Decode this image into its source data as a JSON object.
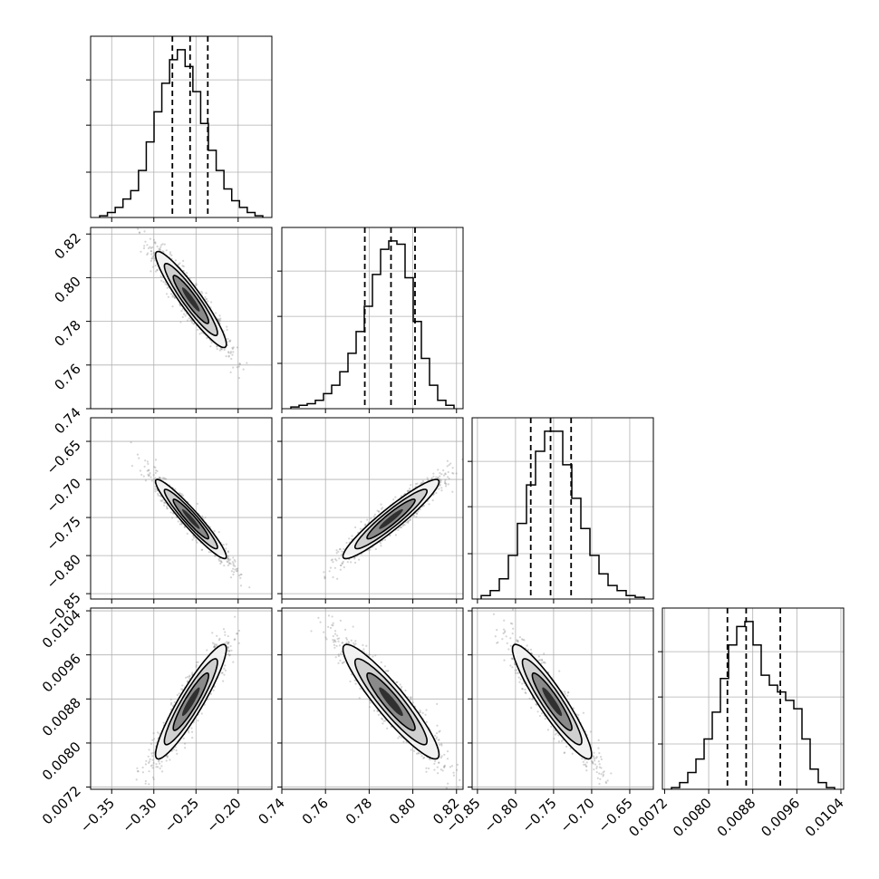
{
  "chart_data": {
    "type": "corner",
    "parameters": [
      {
        "range": [
          -0.375,
          -0.16
        ],
        "ticks": [
          -0.35,
          -0.3,
          -0.25,
          -0.2
        ],
        "tick_labels": [
          "−0.35",
          "−0.30",
          "−0.25",
          "−0.20"
        ],
        "mean": -0.256,
        "sd": 0.021,
        "quantiles": [
          -0.278,
          -0.257,
          -0.236
        ]
      },
      {
        "range": [
          0.74,
          0.823
        ],
        "ticks": [
          0.74,
          0.76,
          0.78,
          0.8,
          0.82
        ],
        "tick_labels": [
          "0.74",
          "0.76",
          "0.78",
          "0.80",
          "0.82"
        ],
        "mean": 0.79,
        "sd": 0.011,
        "quantiles": [
          0.778,
          0.79,
          0.801
        ]
      },
      {
        "range": [
          -0.857,
          -0.619
        ],
        "ticks": [
          -0.85,
          -0.8,
          -0.75,
          -0.7,
          -0.65
        ],
        "tick_labels": [
          "−0.85",
          "−0.80",
          "−0.75",
          "−0.70",
          "−0.65"
        ],
        "mean": -0.752,
        "sd": 0.026,
        "quantiles": [
          -0.78,
          -0.754,
          -0.727
        ]
      },
      {
        "range": [
          0.00716,
          0.01045
        ],
        "ticks": [
          0.0072,
          0.008,
          0.0088,
          0.0096,
          0.0104
        ],
        "tick_labels": [
          "0.0072",
          "0.0080",
          "0.0088",
          "0.0096",
          "0.0104"
        ],
        "mean": 0.00875,
        "sd": 0.00052,
        "quantiles": [
          0.00834,
          0.00868,
          0.0093
        ]
      }
    ],
    "correlations": [
      [
        1,
        -0.93,
        -0.95,
        0.92
      ],
      [
        -0.93,
        1,
        0.94,
        -0.92
      ],
      [
        -0.95,
        0.94,
        1,
        -0.92
      ],
      [
        0.92,
        -0.92,
        -0.92,
        1
      ]
    ],
    "histograms": [
      [
        0.01,
        0.03,
        0.06,
        0.11,
        0.16,
        0.28,
        0.45,
        0.63,
        0.8,
        0.94,
        1.0,
        0.9,
        0.75,
        0.56,
        0.4,
        0.28,
        0.17,
        0.1,
        0.06,
        0.03,
        0.01
      ],
      [
        0.01,
        0.02,
        0.03,
        0.05,
        0.09,
        0.14,
        0.22,
        0.33,
        0.46,
        0.61,
        0.8,
        0.95,
        1.0,
        0.98,
        0.78,
        0.52,
        0.3,
        0.14,
        0.05,
        0.02
      ],
      [
        0.02,
        0.05,
        0.12,
        0.26,
        0.45,
        0.68,
        0.88,
        1.0,
        1.0,
        0.8,
        0.6,
        0.42,
        0.26,
        0.15,
        0.08,
        0.05,
        0.02,
        0.01
      ],
      [
        0.01,
        0.04,
        0.1,
        0.18,
        0.3,
        0.46,
        0.66,
        0.86,
        0.97,
        1.0,
        0.86,
        0.68,
        0.62,
        0.58,
        0.53,
        0.48,
        0.3,
        0.12,
        0.04,
        0.01
      ]
    ],
    "grid": true,
    "quantile_lines": "dashed"
  }
}
